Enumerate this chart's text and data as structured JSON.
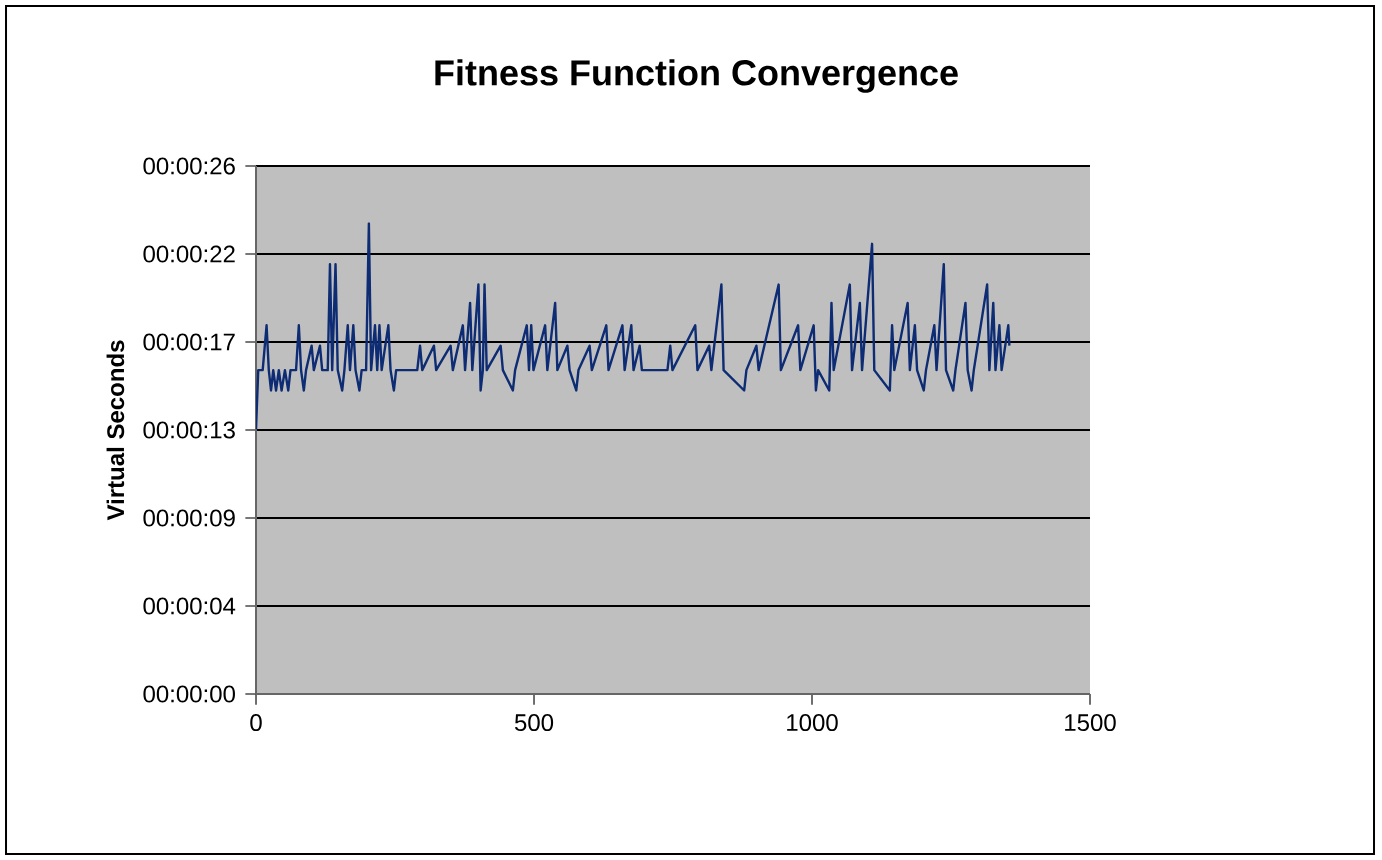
{
  "chart_data": {
    "type": "line",
    "title": "Fitness Function Convergence",
    "ylabel": "Virtual Seconds",
    "xlim": [
      0,
      1500
    ],
    "xticks": [
      0,
      500,
      1000,
      1500
    ],
    "ylim": [
      0,
      25.92
    ],
    "yticks": [
      {
        "value": 0,
        "label": "00:00:00"
      },
      {
        "value": 4.32,
        "label": "00:00:04"
      },
      {
        "value": 8.64,
        "label": "00:00:09"
      },
      {
        "value": 12.96,
        "label": "00:00:13"
      },
      {
        "value": 17.28,
        "label": "00:00:17"
      },
      {
        "value": 21.6,
        "label": "00:00:22"
      },
      {
        "value": 25.92,
        "label": "00:00:26"
      }
    ],
    "grid": "y",
    "marker": "none",
    "line_style": "solid",
    "series": [
      {
        "color": "#0d2c74",
        "x": [
          0,
          4,
          12,
          19,
          23,
          27,
          31,
          36,
          41,
          46,
          52,
          58,
          62,
          72,
          77,
          81,
          86,
          90,
          100,
          104,
          115,
          119,
          129,
          133,
          137,
          143,
          147,
          155,
          159,
          165,
          169,
          175,
          179,
          186,
          190,
          198,
          203,
          207,
          214,
          218,
          222,
          226,
          238,
          242,
          248,
          252,
          290,
          295,
          299,
          320,
          324,
          350,
          354,
          372,
          376,
          385,
          389,
          400,
          404,
          408,
          411,
          415,
          440,
          444,
          462,
          466,
          487,
          491,
          495,
          499,
          520,
          524,
          538,
          542,
          560,
          564,
          576,
          580,
          600,
          604,
          630,
          634,
          659,
          663,
          675,
          679,
          690,
          694,
          740,
          745,
          749,
          790,
          794,
          815,
          819,
          837,
          841,
          878,
          882,
          900,
          904,
          940,
          944,
          975,
          979,
          1003,
          1007,
          1011,
          1031,
          1035,
          1039,
          1068,
          1072,
          1086,
          1090,
          1108,
          1112,
          1140,
          1144,
          1148,
          1172,
          1176,
          1185,
          1189,
          1201,
          1205,
          1220,
          1224,
          1237,
          1241,
          1254,
          1258,
          1276,
          1280,
          1287,
          1291,
          1315,
          1319,
          1326,
          1330,
          1337,
          1341,
          1353,
          1355
        ],
        "values": [
          13,
          15.9,
          15.9,
          18.1,
          15.9,
          14.9,
          15.9,
          14.9,
          15.9,
          14.9,
          15.9,
          14.9,
          15.9,
          15.9,
          18.1,
          15.9,
          14.9,
          15.9,
          17.1,
          15.9,
          17.1,
          15.9,
          15.9,
          21.1,
          15.9,
          21.1,
          15.9,
          14.9,
          15.9,
          18.1,
          15.9,
          18.1,
          15.9,
          14.9,
          15.9,
          15.9,
          23.1,
          15.9,
          18.1,
          15.9,
          18.1,
          15.9,
          18.1,
          15.9,
          14.9,
          15.9,
          15.9,
          17.1,
          15.9,
          17.1,
          15.9,
          17.1,
          15.9,
          18.1,
          15.9,
          19.2,
          15.9,
          20.1,
          14.9,
          15.9,
          20.1,
          15.9,
          17.1,
          15.9,
          14.9,
          15.9,
          18.1,
          15.9,
          18.1,
          15.9,
          18.1,
          15.9,
          19.2,
          15.9,
          17.1,
          15.9,
          14.9,
          15.9,
          17.1,
          15.9,
          18.1,
          15.9,
          18.1,
          15.9,
          18.1,
          15.9,
          17.1,
          15.9,
          15.9,
          17.1,
          15.9,
          18.1,
          15.9,
          17.1,
          15.9,
          20.1,
          15.9,
          14.9,
          15.9,
          17.1,
          15.9,
          20.1,
          15.9,
          18.1,
          15.9,
          18.1,
          14.9,
          15.9,
          14.9,
          19.2,
          15.9,
          20.1,
          15.9,
          19.2,
          15.9,
          22.1,
          15.9,
          14.9,
          18.1,
          15.9,
          19.2,
          15.9,
          18.1,
          15.9,
          14.9,
          15.9,
          18.1,
          15.9,
          21.1,
          15.9,
          14.9,
          15.9,
          19.2,
          15.9,
          14.9,
          15.9,
          20.1,
          15.9,
          19.2,
          15.9,
          18.1,
          15.9,
          18.1,
          17.1
        ]
      }
    ]
  }
}
